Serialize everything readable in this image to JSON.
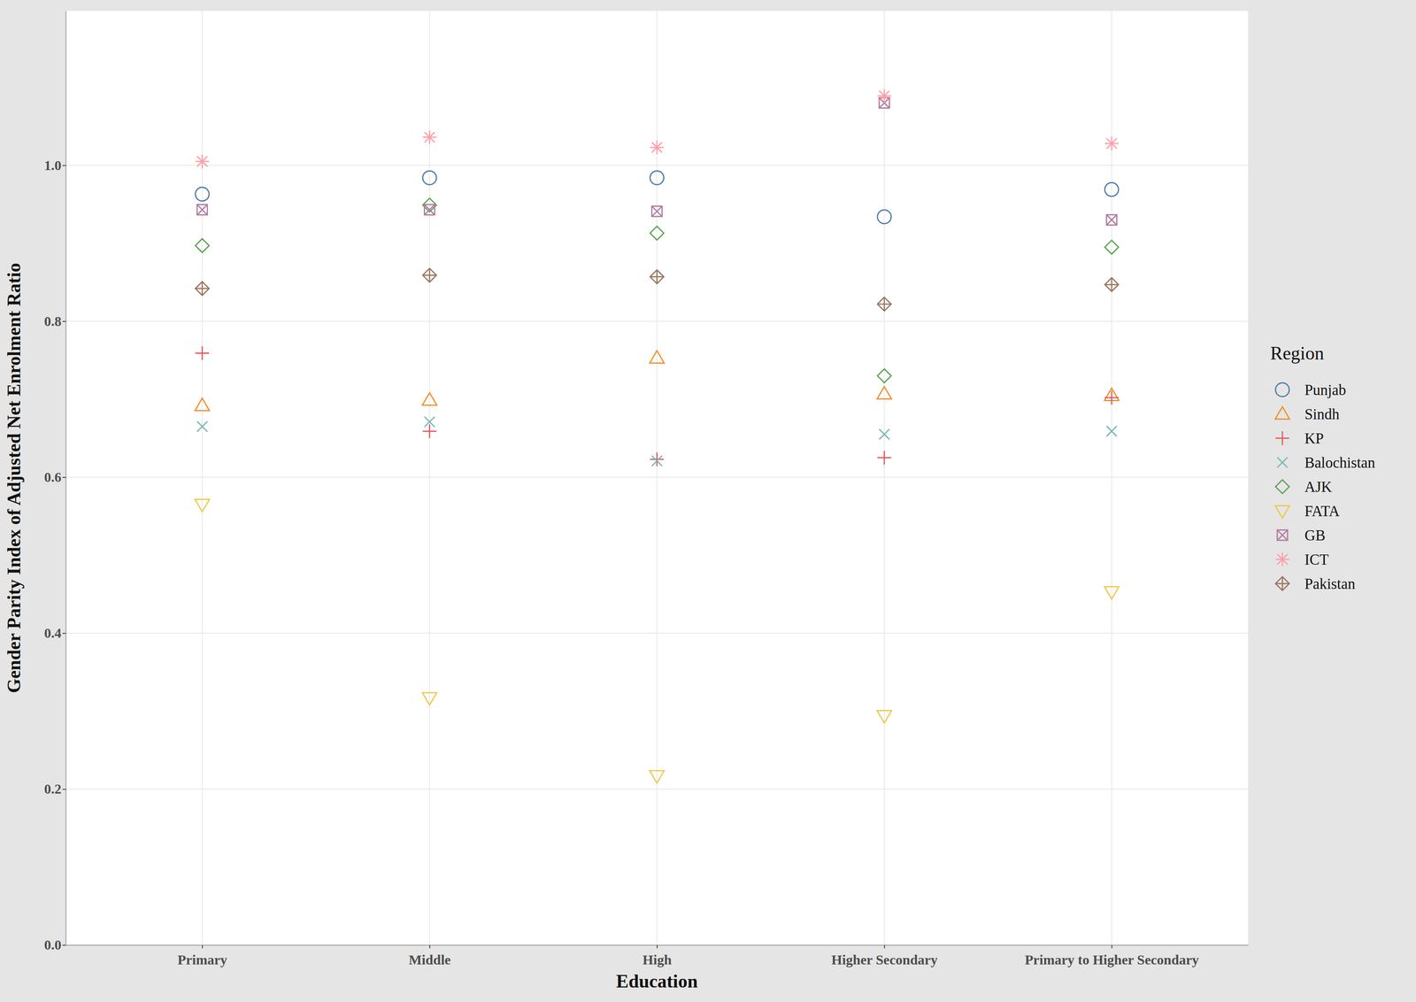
{
  "chart_data": {
    "type": "scatter",
    "x_label": "Education",
    "y_label": "Gender Parity Index of Adjusted Net Enrolment Ratio",
    "legend_title": "Region",
    "legend": "right",
    "grid": true,
    "categories": [
      "Primary",
      "Middle",
      "High",
      "Higher Secondary",
      "Primary to Higher Secondary"
    ],
    "ylim": [
      0,
      1.198
    ],
    "yticks": [
      {
        "value": 0,
        "label": "0.0"
      },
      0.2,
      0.4,
      0.6,
      0.8,
      {
        "value": 1,
        "label": "1.0"
      }
    ],
    "series": [
      {
        "name": "Punjab",
        "color": "#4e79a7",
        "marker": "circle",
        "values": [
          0.963,
          0.984,
          0.984,
          0.934,
          0.969
        ]
      },
      {
        "name": "Sindh",
        "color": "#f28e2b",
        "marker": "triangle-up",
        "values": [
          0.692,
          0.699,
          0.753,
          0.707,
          0.705
        ]
      },
      {
        "name": "KP",
        "color": "#e15759",
        "marker": "plus",
        "values": [
          0.759,
          0.659,
          0.623,
          0.625,
          0.702
        ]
      },
      {
        "name": "Balochistan",
        "color": "#76b7b2",
        "marker": "cross",
        "values": [
          0.665,
          0.671,
          0.621,
          0.655,
          0.659
        ]
      },
      {
        "name": "AJK",
        "color": "#59a14f",
        "marker": "diamond",
        "values": [
          0.897,
          0.949,
          0.913,
          0.73,
          0.895
        ]
      },
      {
        "name": "FATA",
        "color": "#edc948",
        "marker": "triangle-down",
        "values": [
          0.565,
          0.317,
          0.217,
          0.294,
          0.453
        ]
      },
      {
        "name": "GB",
        "color": "#b07aa1",
        "marker": "square-x",
        "values": [
          0.943,
          0.943,
          0.941,
          1.08,
          0.93
        ]
      },
      {
        "name": "ICT",
        "color": "#ff9da7",
        "marker": "asterisk",
        "values": [
          1.005,
          1.036,
          1.023,
          1.089,
          1.028
        ]
      },
      {
        "name": "Pakistan",
        "color": "#9c755f",
        "marker": "diamond-plus",
        "values": [
          0.842,
          0.859,
          0.857,
          0.822,
          0.847
        ]
      }
    ]
  }
}
